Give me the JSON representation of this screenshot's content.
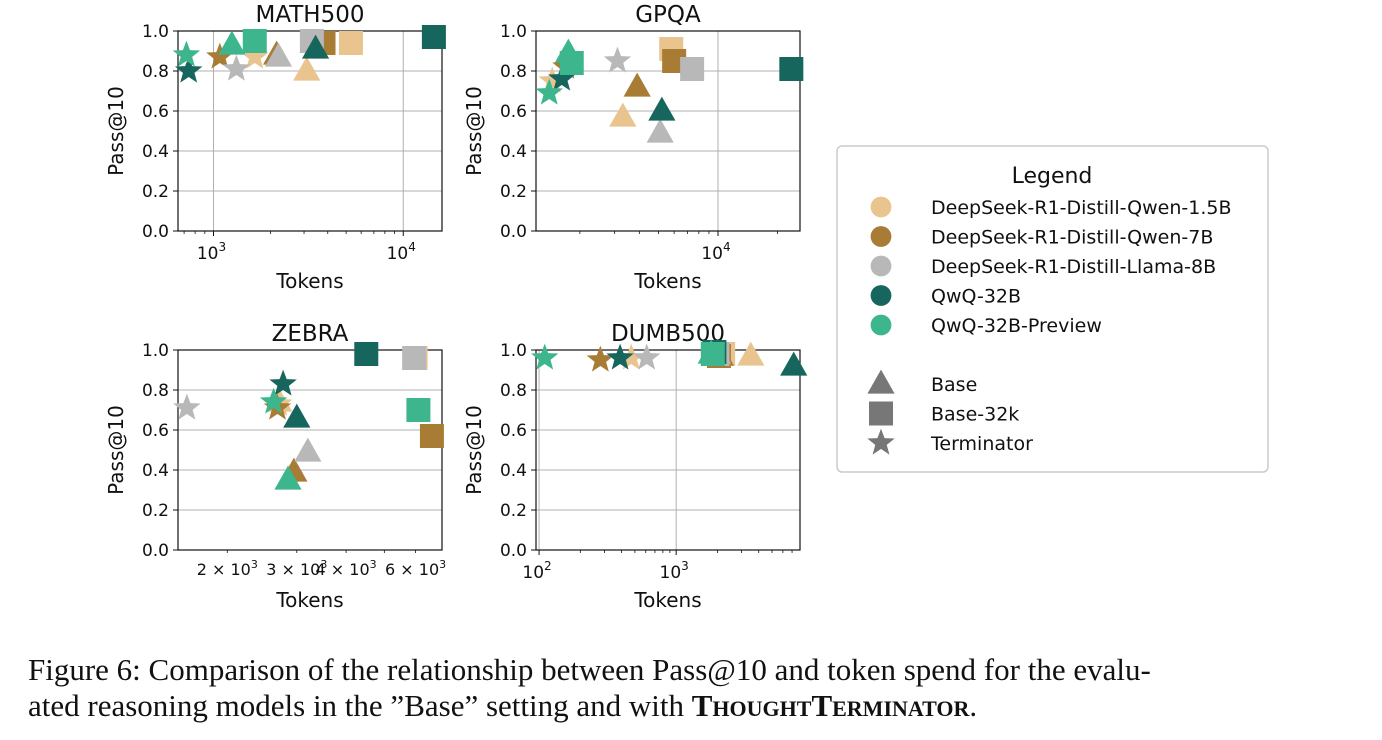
{
  "colors": {
    "qwen15": "#e9c48f",
    "qwen7": "#a87c34",
    "llama8": "#b8b8b8",
    "qwq32": "#17665e",
    "qwq32p": "#3db68e"
  },
  "legend": {
    "title": "Legend",
    "models": [
      {
        "key": "qwen15",
        "label": "DeepSeek-R1-Distill-Qwen-1.5B"
      },
      {
        "key": "qwen7",
        "label": "DeepSeek-R1-Distill-Qwen-7B"
      },
      {
        "key": "llama8",
        "label": "DeepSeek-R1-Distill-Llama-8B"
      },
      {
        "key": "qwq32",
        "label": "QwQ-32B"
      },
      {
        "key": "qwq32p",
        "label": "QwQ-32B-Preview"
      }
    ],
    "settings": [
      {
        "key": "base",
        "label": "Base"
      },
      {
        "key": "base32k",
        "label": "Base-32k"
      },
      {
        "key": "terminator",
        "label": "Terminator"
      }
    ]
  },
  "caption": {
    "prefix": "Figure 6: Comparison of the relationship between Pass@10 and token spend for the evalu-",
    "line2_prefix": "ated reasoning models in the ”Base” setting and with ",
    "method_part1": "Thought",
    "method_part2": "Terminator",
    "suffix": "."
  },
  "chart_data": [
    {
      "type": "scatter",
      "title": "MATH500",
      "xlabel": "Tokens",
      "ylabel": "Pass@10",
      "xscale": "log",
      "xlim": [
        650,
        16000
      ],
      "ylim": [
        0,
        1.0
      ],
      "yticks": [
        "0.0",
        "0.2",
        "0.4",
        "0.6",
        "0.8",
        "1.0"
      ],
      "xticks": [
        {
          "base": "10",
          "exp": "3",
          "value": 1000
        },
        {
          "base": "10",
          "exp": "4",
          "value": 10000
        }
      ],
      "minor_tick_labels": [],
      "points": [
        {
          "model": "qwen15",
          "setting": "base",
          "x": 3100,
          "y": 0.8
        },
        {
          "model": "qwen15",
          "setting": "base32k",
          "x": 5300,
          "y": 0.94
        },
        {
          "model": "qwen15",
          "setting": "terminator",
          "x": 1650,
          "y": 0.87
        },
        {
          "model": "qwen7",
          "setting": "base",
          "x": 2150,
          "y": 0.88
        },
        {
          "model": "qwen7",
          "setting": "base32k",
          "x": 3800,
          "y": 0.94
        },
        {
          "model": "qwen7",
          "setting": "terminator",
          "x": 1080,
          "y": 0.87
        },
        {
          "model": "llama8",
          "setting": "base",
          "x": 2200,
          "y": 0.87
        },
        {
          "model": "llama8",
          "setting": "base32k",
          "x": 3300,
          "y": 0.95
        },
        {
          "model": "llama8",
          "setting": "terminator",
          "x": 1320,
          "y": 0.81
        },
        {
          "model": "qwq32",
          "setting": "base",
          "x": 3450,
          "y": 0.91
        },
        {
          "model": "qwq32",
          "setting": "base32k",
          "x": 14500,
          "y": 0.97
        },
        {
          "model": "qwq32",
          "setting": "terminator",
          "x": 740,
          "y": 0.8
        },
        {
          "model": "qwq32p",
          "setting": "base",
          "x": 1250,
          "y": 0.93
        },
        {
          "model": "qwq32p",
          "setting": "base32k",
          "x": 1650,
          "y": 0.95
        },
        {
          "model": "qwq32p",
          "setting": "terminator",
          "x": 720,
          "y": 0.88
        }
      ]
    },
    {
      "type": "scatter",
      "title": "GPQA",
      "xlabel": "Tokens",
      "ylabel": "Pass@10",
      "xscale": "log",
      "xlim": [
        1200,
        26000
      ],
      "ylim": [
        0,
        1.0
      ],
      "yticks": [
        "0.0",
        "0.2",
        "0.4",
        "0.6",
        "0.8",
        "1.0"
      ],
      "xticks": [
        {
          "base": "10",
          "exp": "4",
          "value": 10000
        }
      ],
      "minor_tick_labels": [],
      "points": [
        {
          "model": "qwen15",
          "setting": "base",
          "x": 3300,
          "y": 0.57
        },
        {
          "model": "qwen15",
          "setting": "base32k",
          "x": 5800,
          "y": 0.91
        },
        {
          "model": "qwen15",
          "setting": "terminator",
          "x": 1450,
          "y": 0.75
        },
        {
          "model": "qwen7",
          "setting": "base",
          "x": 3900,
          "y": 0.72
        },
        {
          "model": "qwen7",
          "setting": "base32k",
          "x": 6000,
          "y": 0.85
        },
        {
          "model": "qwen7",
          "setting": "terminator",
          "x": 1700,
          "y": 0.82
        },
        {
          "model": "llama8",
          "setting": "base",
          "x": 5100,
          "y": 0.49
        },
        {
          "model": "llama8",
          "setting": "base32k",
          "x": 7400,
          "y": 0.81
        },
        {
          "model": "llama8",
          "setting": "terminator",
          "x": 3100,
          "y": 0.85
        },
        {
          "model": "qwq32",
          "setting": "base",
          "x": 5200,
          "y": 0.6
        },
        {
          "model": "qwq32",
          "setting": "base32k",
          "x": 23500,
          "y": 0.81
        },
        {
          "model": "qwq32",
          "setting": "terminator",
          "x": 1620,
          "y": 0.76
        },
        {
          "model": "qwq32p",
          "setting": "base",
          "x": 1750,
          "y": 0.89
        },
        {
          "model": "qwq32p",
          "setting": "base32k",
          "x": 1820,
          "y": 0.84
        },
        {
          "model": "qwq32p",
          "setting": "terminator",
          "x": 1400,
          "y": 0.69
        }
      ]
    },
    {
      "type": "scatter",
      "title": "ZEBRA",
      "xlabel": "Tokens",
      "ylabel": "Pass@10",
      "xscale": "log",
      "xlim": [
        1500,
        7000
      ],
      "ylim": [
        0,
        1.0
      ],
      "yticks": [
        "0.0",
        "0.2",
        "0.4",
        "0.6",
        "0.8",
        "1.0"
      ],
      "xticks": [],
      "minor_tick_labels": [
        {
          "text": "2 × 10",
          "exp": "3",
          "value": 2000
        },
        {
          "text": "3 × 10",
          "exp": "3",
          "value": 3000
        },
        {
          "text": "4 × 10",
          "exp": "3",
          "value": 4000
        },
        {
          "text": "6 × 10",
          "exp": "3",
          "value": 6000
        }
      ],
      "points": [
        {
          "model": "qwen15",
          "setting": "base",
          "x": 2700,
          "y": 0.74
        },
        {
          "model": "qwen15",
          "setting": "base32k",
          "x": 6000,
          "y": 0.96
        },
        {
          "model": "qwen15",
          "setting": "terminator",
          "x": 2700,
          "y": 0.73
        },
        {
          "model": "qwen7",
          "setting": "base",
          "x": 2950,
          "y": 0.39
        },
        {
          "model": "qwen7",
          "setting": "base32k",
          "x": 6600,
          "y": 0.57
        },
        {
          "model": "qwen7",
          "setting": "terminator",
          "x": 2680,
          "y": 0.71
        },
        {
          "model": "llama8",
          "setting": "base",
          "x": 3200,
          "y": 0.49
        },
        {
          "model": "llama8",
          "setting": "base32k",
          "x": 5950,
          "y": 0.96
        },
        {
          "model": "llama8",
          "setting": "terminator",
          "x": 1580,
          "y": 0.71
        },
        {
          "model": "qwq32",
          "setting": "base",
          "x": 3000,
          "y": 0.66
        },
        {
          "model": "qwq32",
          "setting": "base32k",
          "x": 4500,
          "y": 0.98
        },
        {
          "model": "qwq32",
          "setting": "terminator",
          "x": 2770,
          "y": 0.83
        },
        {
          "model": "qwq32p",
          "setting": "base",
          "x": 2850,
          "y": 0.35
        },
        {
          "model": "qwq32p",
          "setting": "base32k",
          "x": 6100,
          "y": 0.7
        },
        {
          "model": "qwq32p",
          "setting": "terminator",
          "x": 2620,
          "y": 0.74
        }
      ]
    },
    {
      "type": "scatter",
      "title": "DUMB500",
      "xlabel": "Tokens",
      "ylabel": "Pass@10",
      "xscale": "log",
      "xlim": [
        95,
        8000
      ],
      "ylim": [
        0,
        1.0
      ],
      "yticks": [
        "0.0",
        "0.2",
        "0.4",
        "0.6",
        "0.8",
        "1.0"
      ],
      "xticks": [
        {
          "base": "10",
          "exp": "2",
          "value": 100
        },
        {
          "base": "10",
          "exp": "3",
          "value": 1000
        }
      ],
      "minor_tick_labels": [],
      "points": [
        {
          "model": "qwen15",
          "setting": "base",
          "x": 3500,
          "y": 0.97
        },
        {
          "model": "qwen15",
          "setting": "base32k",
          "x": 2200,
          "y": 0.98
        },
        {
          "model": "qwen15",
          "setting": "terminator",
          "x": 470,
          "y": 0.96
        },
        {
          "model": "qwen7",
          "setting": "base",
          "x": 2100,
          "y": 0.97
        },
        {
          "model": "qwen7",
          "setting": "base32k",
          "x": 2050,
          "y": 0.97
        },
        {
          "model": "qwen7",
          "setting": "terminator",
          "x": 280,
          "y": 0.95
        },
        {
          "model": "llama8",
          "setting": "base",
          "x": 2000,
          "y": 0.98
        },
        {
          "model": "llama8",
          "setting": "base32k",
          "x": 2000,
          "y": 0.98
        },
        {
          "model": "llama8",
          "setting": "terminator",
          "x": 610,
          "y": 0.96
        },
        {
          "model": "qwq32",
          "setting": "base",
          "x": 7200,
          "y": 0.92
        },
        {
          "model": "qwq32",
          "setting": "base32k",
          "x": 1900,
          "y": 0.99
        },
        {
          "model": "qwq32",
          "setting": "terminator",
          "x": 390,
          "y": 0.96
        },
        {
          "model": "qwq32p",
          "setting": "base",
          "x": 1800,
          "y": 0.98
        },
        {
          "model": "qwq32p",
          "setting": "base32k",
          "x": 1850,
          "y": 0.98
        },
        {
          "model": "qwq32p",
          "setting": "terminator",
          "x": 110,
          "y": 0.96
        }
      ]
    }
  ]
}
